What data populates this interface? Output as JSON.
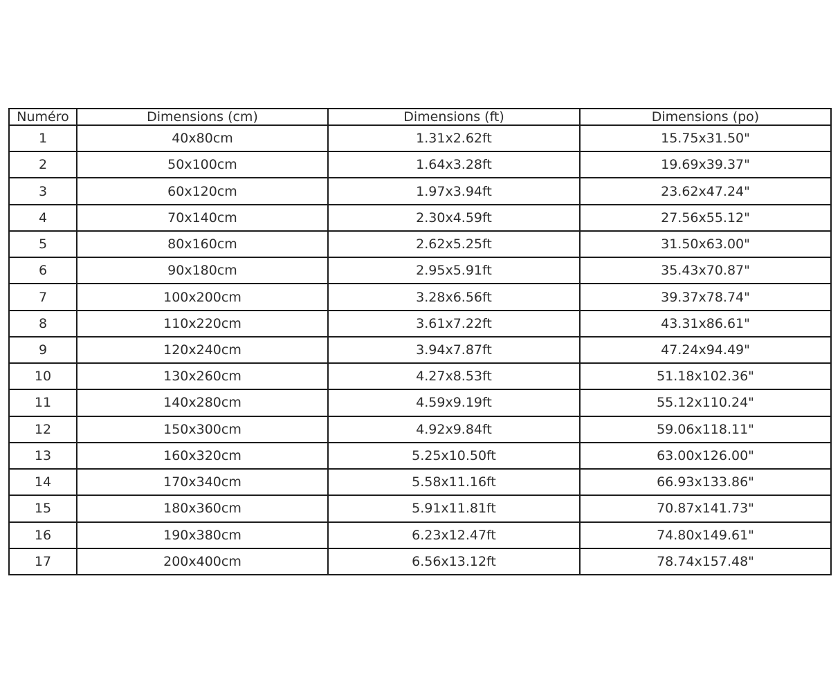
{
  "chart_data": {
    "type": "table",
    "title": "",
    "columns": [
      "Numéro",
      "Dimensions (cm)",
      "Dimensions (ft)",
      "Dimensions (po)"
    ],
    "rows": [
      [
        "1",
        "40x80cm",
        "1.31x2.62ft",
        "15.75x31.50\""
      ],
      [
        "2",
        "50x100cm",
        "1.64x3.28ft",
        "19.69x39.37\""
      ],
      [
        "3",
        "60x120cm",
        "1.97x3.94ft",
        "23.62x47.24\""
      ],
      [
        "4",
        "70x140cm",
        "2.30x4.59ft",
        "27.56x55.12\""
      ],
      [
        "5",
        "80x160cm",
        "2.62x5.25ft",
        "31.50x63.00\""
      ],
      [
        "6",
        "90x180cm",
        "2.95x5.91ft",
        "35.43x70.87\""
      ],
      [
        "7",
        "100x200cm",
        "3.28x6.56ft",
        "39.37x78.74\""
      ],
      [
        "8",
        "110x220cm",
        "3.61x7.22ft",
        "43.31x86.61\""
      ],
      [
        "9",
        "120x240cm",
        "3.94x7.87ft",
        "47.24x94.49\""
      ],
      [
        "10",
        "130x260cm",
        "4.27x8.53ft",
        "51.18x102.36\""
      ],
      [
        "11",
        "140x280cm",
        "4.59x9.19ft",
        "55.12x110.24\""
      ],
      [
        "12",
        "150x300cm",
        "4.92x9.84ft",
        "59.06x118.11\""
      ],
      [
        "13",
        "160x320cm",
        "5.25x10.50ft",
        "63.00x126.00\""
      ],
      [
        "14",
        "170x340cm",
        "5.58x11.16ft",
        "66.93x133.86\""
      ],
      [
        "15",
        "180x360cm",
        "5.91x11.81ft",
        "70.87x141.73\""
      ],
      [
        "16",
        "190x380cm",
        "6.23x12.47ft",
        "74.80x149.61\""
      ],
      [
        "17",
        "200x400cm",
        "6.56x13.12ft",
        "78.74x157.48\""
      ]
    ]
  },
  "colors": {
    "background": "#ffffff",
    "border": "#1c1c1c",
    "text": "#2e2e2e"
  }
}
